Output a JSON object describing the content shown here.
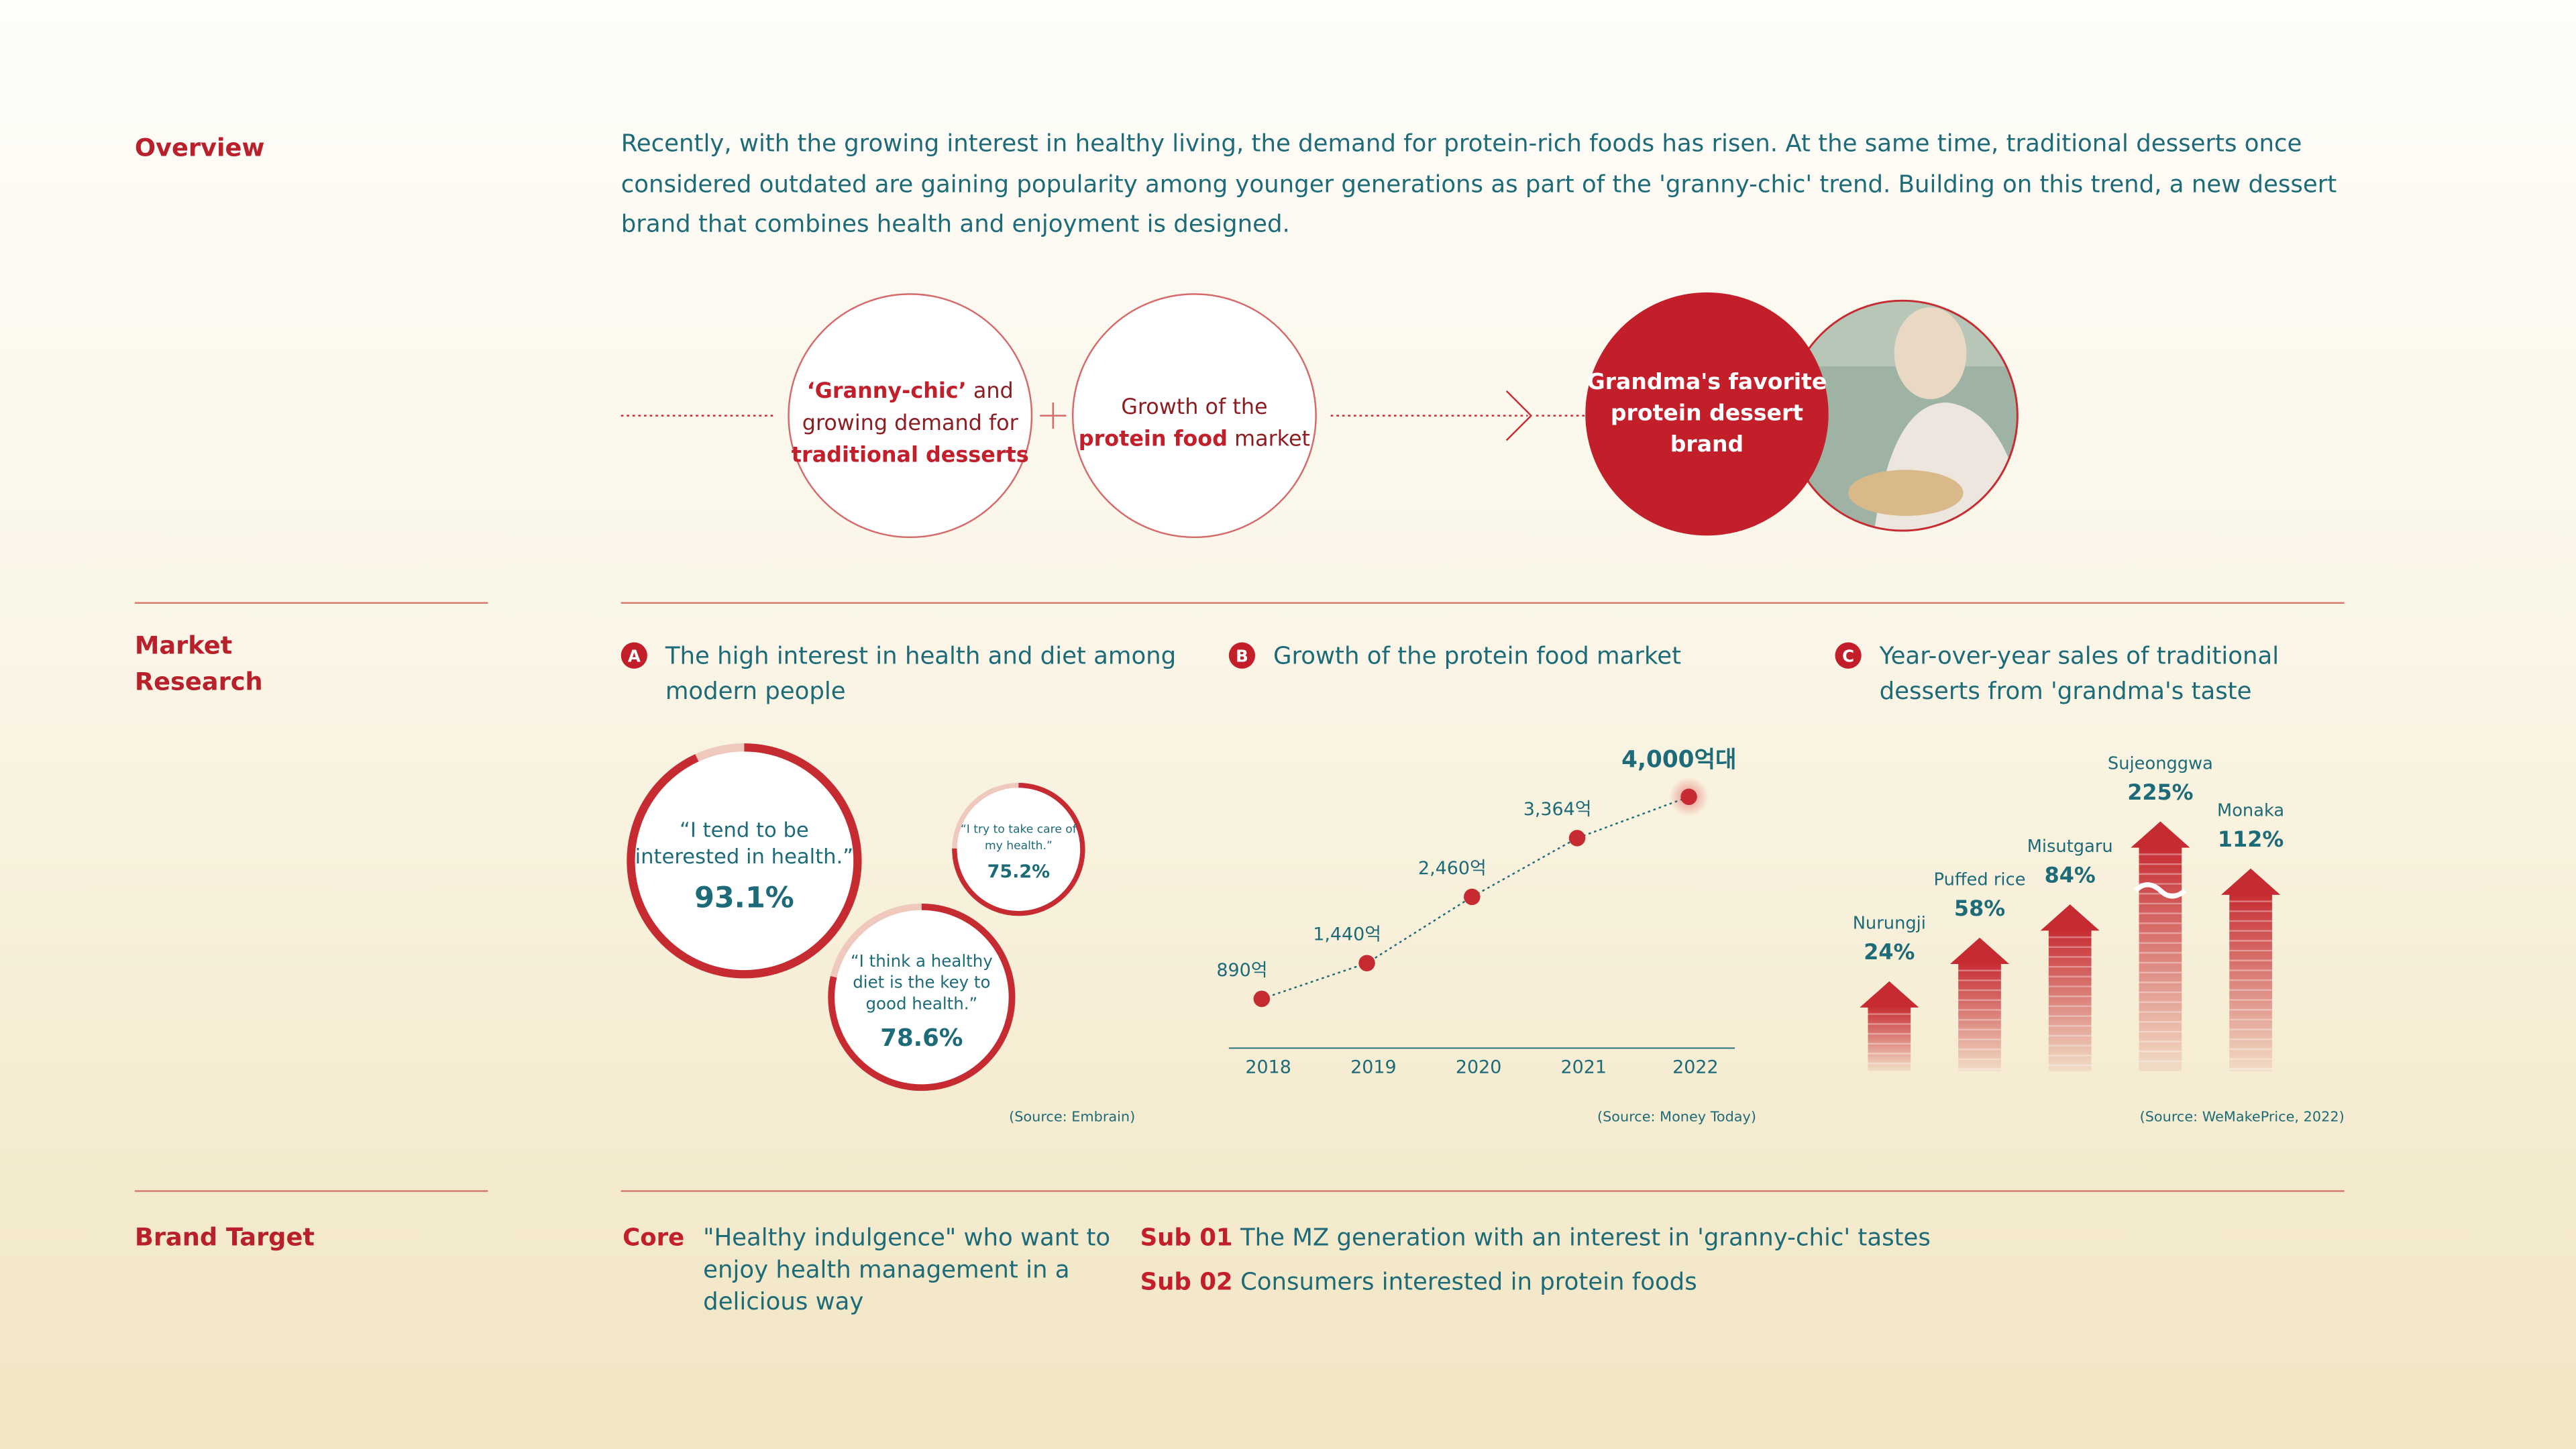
{
  "overview": {
    "heading": "Overview",
    "text": "Recently, with the growing interest in healthy living, the demand for protein-rich foods has risen. At the same time, traditional desserts once considered outdated are gaining popularity among younger generations as part of the 'granny-chic' trend. Building on this trend, a new dessert brand that combines health and enjoyment is designed.",
    "flow": {
      "circle1": [
        [
          {
            "text": "‘Granny-chic’",
            "bold": true
          },
          {
            "text": " and",
            "bold": false
          }
        ],
        [
          {
            "text": "growing demand for",
            "bold": false
          }
        ],
        [
          {
            "text": "traditional desserts",
            "bold": true
          }
        ]
      ],
      "circle2": [
        [
          {
            "text": "Growth of the",
            "bold": false
          }
        ],
        [
          {
            "text": "protein food",
            "bold": true
          },
          {
            "text": " market",
            "bold": false
          }
        ]
      ],
      "result": [
        "Grandma's favorite",
        "protein dessert",
        "brand"
      ]
    }
  },
  "market_research": {
    "heading": [
      "Market",
      "Research"
    ]
  },
  "chart_data": [
    {
      "type": "ring",
      "marker": "A",
      "title": [
        "The high interest in health and diet among",
        "modern people"
      ],
      "categories": [
        [
          "“I tend to be",
          "interested in health.”"
        ],
        [
          "“I try to take care of",
          "my health.”"
        ],
        [
          "“I think a healthy",
          "diet is the key to",
          "good health.”"
        ]
      ],
      "values": [
        93.1,
        75.2,
        78.6
      ],
      "value_labels": [
        "93.1%",
        "75.2%",
        "78.6%"
      ],
      "color": "#c62b31",
      "track_color": "#efc9bd",
      "source": "(Source: Embrain)"
    },
    {
      "type": "line",
      "marker": "B",
      "title": [
        "Growth of the protein food market"
      ],
      "categories": [
        "2018",
        "2019",
        "2020",
        "2021",
        "2022"
      ],
      "values": [
        890,
        1440,
        2460,
        3364,
        4000
      ],
      "value_labels": [
        "890억",
        "1,440억",
        "2,460억",
        "3,364억",
        "4,000억대"
      ],
      "color": "#c62b31",
      "source": "(Source: Money Today)"
    },
    {
      "type": "arrow",
      "marker": "C",
      "title": [
        "Year-over-year sales of traditional",
        "desserts from 'grandma's taste"
      ],
      "categories": [
        "Nurungji",
        "Puffed rice",
        "Misutgaru",
        "Sujeonggwa",
        "Monaka"
      ],
      "values": [
        24,
        58,
        84,
        225,
        112
      ],
      "value_labels": [
        "24%",
        "58%",
        "84%",
        "225%",
        "112%"
      ],
      "color": "#c62b31",
      "source": "(Source: WeMakePrice, 2022)"
    }
  ],
  "brand_target": {
    "heading": "Brand Target",
    "core": {
      "label": "Core",
      "text": [
        "\"Healthy indulgence\" who want to",
        "enjoy health management in a",
        "delicious way"
      ]
    },
    "subs": [
      {
        "label": "Sub 01",
        "text": "The MZ generation with an interest in 'granny-chic' tastes"
      },
      {
        "label": "Sub 02",
        "text": "Consumers interested in protein foods"
      }
    ]
  }
}
